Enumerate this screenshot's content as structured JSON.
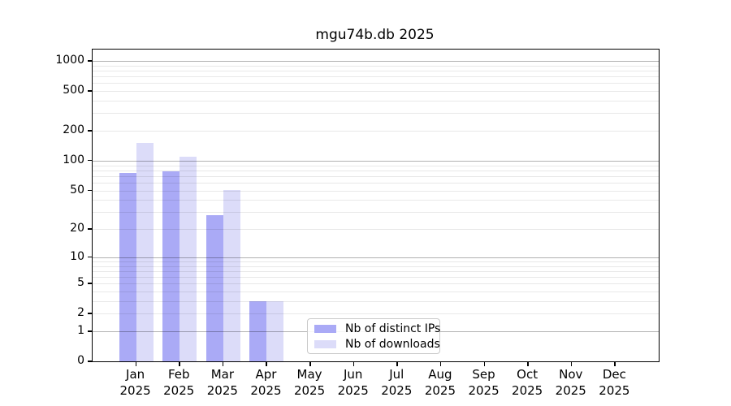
{
  "chart_data": {
    "type": "bar",
    "title": "mgu74b.db 2025",
    "categories": [
      "Jan",
      "Feb",
      "Mar",
      "Apr",
      "May",
      "Jun",
      "Jul",
      "Aug",
      "Sep",
      "Oct",
      "Nov",
      "Dec"
    ],
    "year": "2025",
    "series": [
      {
        "name": "Nb of distinct IPs",
        "color": "#aaaaf6",
        "values": [
          75,
          78,
          28,
          3,
          0,
          0,
          0,
          0,
          0,
          0,
          0,
          0
        ]
      },
      {
        "name": "Nb of downloads",
        "color": "#dcdcf9",
        "values": [
          150,
          110,
          51,
          3,
          0,
          0,
          0,
          0,
          0,
          0,
          0,
          0
        ]
      }
    ],
    "yscale": "log1p",
    "yticks": [
      0,
      1,
      2,
      5,
      10,
      20,
      50,
      100,
      200,
      500,
      1000
    ],
    "ylim": [
      0,
      1300
    ],
    "grid": {
      "major_at": [
        1,
        10,
        100,
        1000
      ],
      "minor_at": [
        2,
        3,
        4,
        5,
        6,
        7,
        8,
        9,
        20,
        30,
        40,
        50,
        60,
        70,
        80,
        90,
        200,
        300,
        400,
        500,
        600,
        700,
        800,
        900
      ],
      "major_color": "#b3b3b3",
      "minor_color": "#e8e8e8"
    },
    "legend_position": "bottom-center"
  }
}
